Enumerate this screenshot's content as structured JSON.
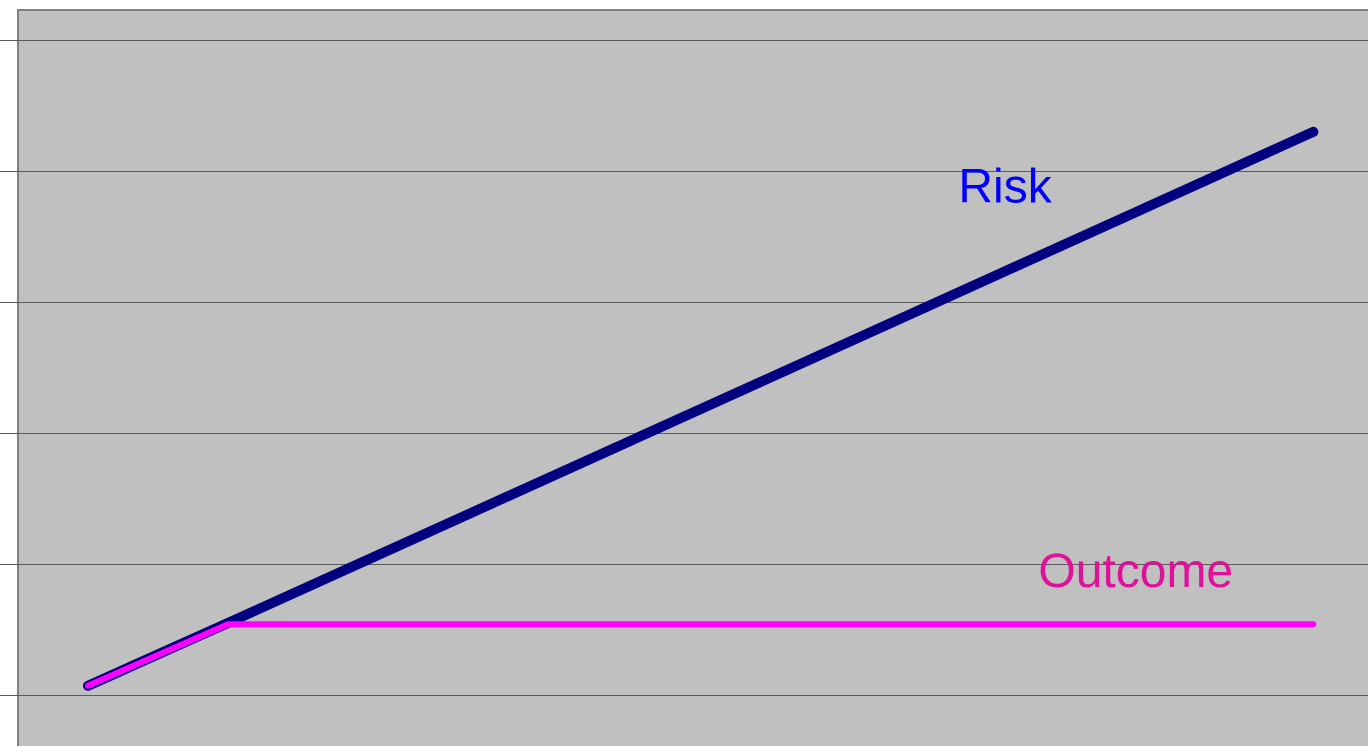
{
  "chart_data": {
    "type": "line",
    "x": [
      0,
      1,
      8.75
    ],
    "xlim": [
      -0.5,
      9.14
    ],
    "ylim": [
      -0.39,
      5.23
    ],
    "yticks": [
      0,
      1,
      2,
      3,
      4,
      5
    ],
    "grid": true,
    "series": [
      {
        "name": "Risk",
        "color": "#000080",
        "label_color": "#0000ff",
        "width": 10,
        "values": [
          0.07,
          0.55,
          4.3
        ]
      },
      {
        "name": "Outcome",
        "color": "#ff00ff",
        "label_color": "#e0109a",
        "width": 6,
        "values": [
          0.07,
          0.54,
          0.54
        ]
      }
    ]
  }
}
